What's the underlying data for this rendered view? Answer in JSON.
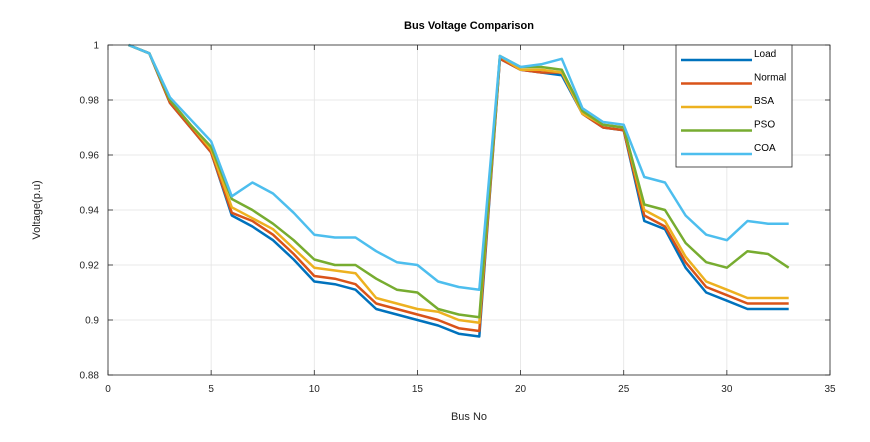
{
  "chart_data": {
    "type": "line",
    "title": "Bus Voltage Comparison",
    "xlabel": "Bus No",
    "ylabel": "Voltage(p.u)",
    "xlim": [
      0,
      35
    ],
    "ylim": [
      0.88,
      1.0
    ],
    "xticks": [
      0,
      5,
      10,
      15,
      20,
      25,
      30,
      35
    ],
    "yticks": [
      0.88,
      0.9,
      0.92,
      0.94,
      0.96,
      0.98,
      1
    ],
    "ytick_labels": [
      "0.88",
      "0.9",
      "0.92",
      "0.94",
      "0.96",
      "0.98",
      "1"
    ],
    "grid": true,
    "legend_position": "top-right",
    "x": [
      1,
      2,
      3,
      4,
      5,
      6,
      7,
      8,
      9,
      10,
      11,
      12,
      13,
      14,
      15,
      16,
      17,
      18,
      19,
      20,
      21,
      22,
      23,
      24,
      25,
      26,
      27,
      28,
      29,
      30,
      31,
      32,
      33
    ],
    "series": [
      {
        "name": "Load",
        "color": "#0072BD",
        "values": [
          1.0,
          0.997,
          0.979,
          0.97,
          0.961,
          0.938,
          0.934,
          0.929,
          0.922,
          0.914,
          0.913,
          0.911,
          0.904,
          0.902,
          0.9,
          0.898,
          0.895,
          0.894,
          0.995,
          0.991,
          0.99,
          0.989,
          0.975,
          0.97,
          0.969,
          0.936,
          0.933,
          0.919,
          0.91,
          0.907,
          0.904,
          0.904,
          0.904
        ]
      },
      {
        "name": "Normal",
        "color": "#D95319",
        "values": [
          1.0,
          0.997,
          0.979,
          0.97,
          0.961,
          0.939,
          0.936,
          0.931,
          0.924,
          0.916,
          0.915,
          0.913,
          0.906,
          0.904,
          0.902,
          0.9,
          0.897,
          0.896,
          0.995,
          0.991,
          0.99,
          0.99,
          0.975,
          0.97,
          0.969,
          0.938,
          0.934,
          0.921,
          0.912,
          0.909,
          0.906,
          0.906,
          0.906
        ]
      },
      {
        "name": "BSA",
        "color": "#EDB120",
        "values": [
          1.0,
          0.997,
          0.98,
          0.971,
          0.962,
          0.941,
          0.937,
          0.933,
          0.926,
          0.919,
          0.918,
          0.917,
          0.908,
          0.906,
          0.904,
          0.903,
          0.9,
          0.899,
          0.996,
          0.991,
          0.991,
          0.99,
          0.975,
          0.971,
          0.97,
          0.94,
          0.936,
          0.923,
          0.914,
          0.911,
          0.908,
          0.908,
          0.908
        ]
      },
      {
        "name": "PSO",
        "color": "#77AC30",
        "values": [
          1.0,
          0.997,
          0.98,
          0.971,
          0.963,
          0.944,
          0.94,
          0.935,
          0.929,
          0.922,
          0.92,
          0.92,
          0.915,
          0.911,
          0.91,
          0.904,
          0.902,
          0.901,
          0.996,
          0.992,
          0.992,
          0.991,
          0.976,
          0.971,
          0.97,
          0.942,
          0.94,
          0.928,
          0.921,
          0.919,
          0.925,
          0.924,
          0.919
        ]
      },
      {
        "name": "COA",
        "color": "#4DBEEE",
        "values": [
          1.0,
          0.997,
          0.981,
          0.973,
          0.965,
          0.945,
          0.95,
          0.946,
          0.939,
          0.931,
          0.93,
          0.93,
          0.925,
          0.921,
          0.92,
          0.914,
          0.912,
          0.911,
          0.996,
          0.992,
          0.993,
          0.995,
          0.977,
          0.972,
          0.971,
          0.952,
          0.95,
          0.938,
          0.931,
          0.929,
          0.936,
          0.935,
          0.935
        ]
      }
    ]
  }
}
